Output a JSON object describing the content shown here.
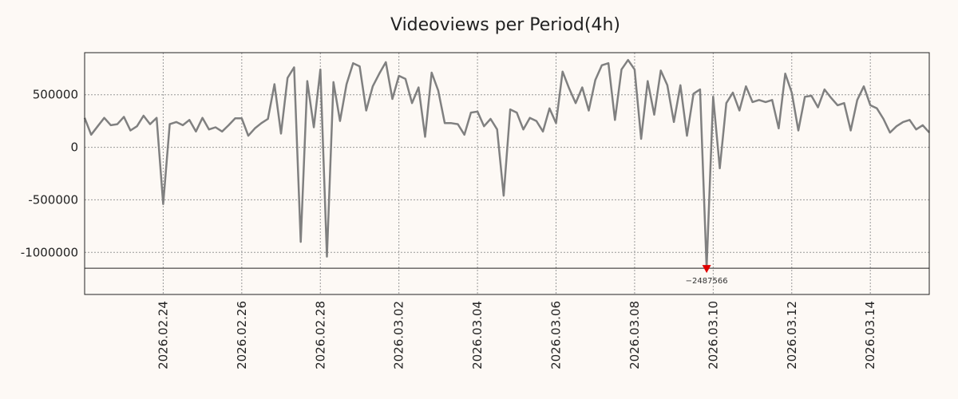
{
  "chart_data": {
    "type": "line",
    "title": "Videoviews per Period(4h)",
    "xlabel": "",
    "ylabel": "",
    "x_range": [
      "2026.02.22 00:00",
      "2026.03.15 16:00"
    ],
    "x_interval_hours": 4,
    "ylim": [
      -1400000,
      900000
    ],
    "y_ticks": [
      500000,
      0,
      -500000,
      -1000000
    ],
    "y_tick_labels": [
      "500000",
      "0",
      "-500000",
      "-1000000"
    ],
    "x_ticks": [
      "2026.02.24",
      "2026.02.26",
      "2026.02.28",
      "2026.03.02",
      "2026.03.04",
      "2026.03.06",
      "2026.03.08",
      "2026.03.10",
      "2026.03.12",
      "2026.03.14"
    ],
    "clip_threshold": -1150000,
    "clipped_points": [
      {
        "date": "2026.03.09 20:00",
        "value": -2487566,
        "label": "−2487566",
        "marker_color": "#e00000"
      }
    ],
    "grid": true,
    "line_color": "#808080",
    "series": [
      {
        "name": "Videoviews",
        "values": [
          280000,
          120000,
          200000,
          280000,
          210000,
          220000,
          290000,
          160000,
          200000,
          300000,
          220000,
          280000,
          -540000,
          220000,
          240000,
          210000,
          260000,
          150000,
          280000,
          170000,
          190000,
          150000,
          210000,
          275000,
          275000,
          110000,
          180000,
          230000,
          270000,
          600000,
          130000,
          660000,
          760000,
          -900000,
          630000,
          190000,
          740000,
          -1040000,
          620000,
          250000,
          600000,
          800000,
          770000,
          350000,
          580000,
          700000,
          810000,
          460000,
          680000,
          650000,
          420000,
          570000,
          100000,
          710000,
          540000,
          230000,
          230000,
          220000,
          120000,
          330000,
          340000,
          200000,
          270000,
          170000,
          -460000,
          360000,
          330000,
          170000,
          280000,
          250000,
          150000,
          370000,
          230000,
          720000,
          560000,
          420000,
          570000,
          350000,
          640000,
          780000,
          800000,
          260000,
          740000,
          830000,
          740000,
          80000,
          630000,
          310000,
          730000,
          590000,
          240000,
          590000,
          110000,
          510000,
          550000,
          -2487566,
          480000,
          -200000,
          420000,
          520000,
          350000,
          580000,
          430000,
          450000,
          430000,
          450000,
          180000,
          700000,
          520000,
          160000,
          480000,
          490000,
          380000,
          550000,
          470000,
          400000,
          420000,
          160000,
          450000,
          580000,
          400000,
          370000,
          270000,
          140000,
          200000,
          240000,
          260000,
          170000,
          210000,
          140000
        ]
      }
    ]
  }
}
